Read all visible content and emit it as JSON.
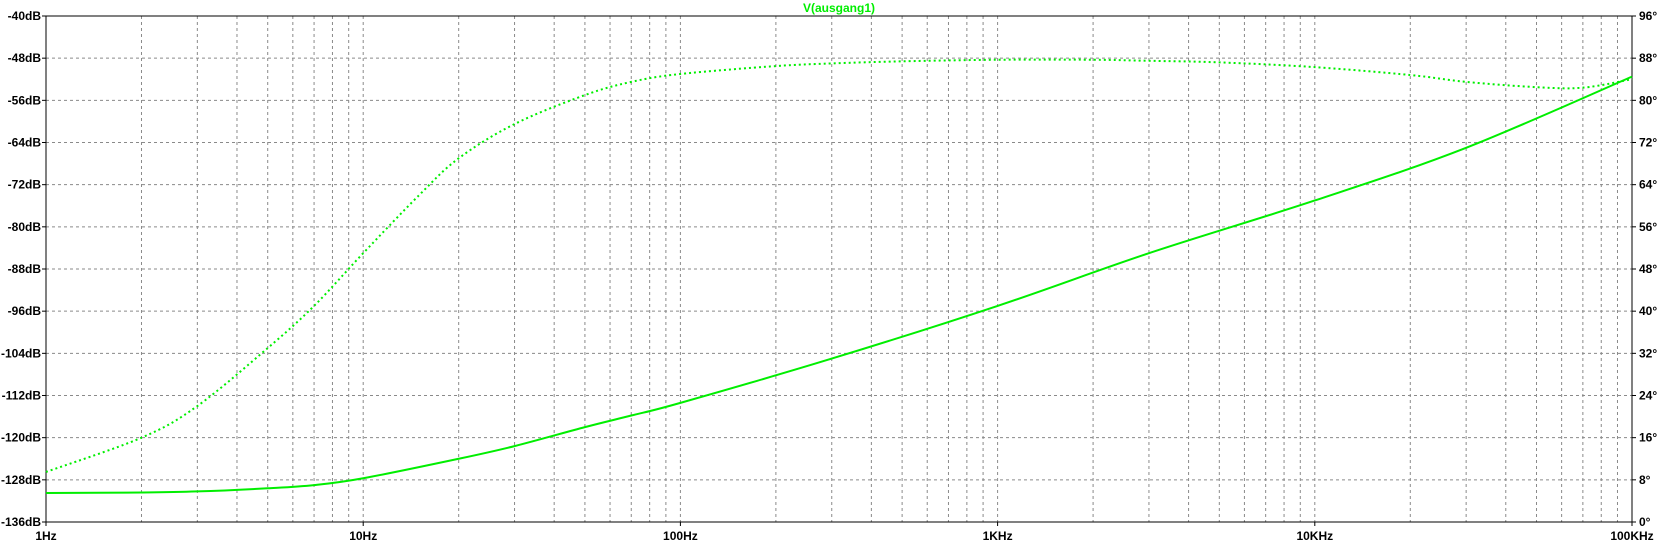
{
  "chart_data": {
    "type": "line",
    "title": "V(ausgang1)",
    "xscale": "log",
    "xlim": [
      1,
      100000
    ],
    "x_ticks": [
      {
        "value": 1,
        "label": "1Hz"
      },
      {
        "value": 10,
        "label": "10Hz"
      },
      {
        "value": 100,
        "label": "100Hz"
      },
      {
        "value": 1000,
        "label": "1KHz"
      },
      {
        "value": 10000,
        "label": "10KHz"
      },
      {
        "value": 100000,
        "label": "100KHz"
      }
    ],
    "ylim_left": [
      -136,
      -40
    ],
    "y_left_ticks": [
      "-40dB",
      "-48dB",
      "-56dB",
      "-64dB",
      "-72dB",
      "-80dB",
      "-88dB",
      "-96dB",
      "-104dB",
      "-112dB",
      "-120dB",
      "-128dB",
      "-136dB"
    ],
    "y_left_values": [
      -40,
      -48,
      -56,
      -64,
      -72,
      -80,
      -88,
      -96,
      -104,
      -112,
      -120,
      -128,
      -136
    ],
    "ylim_right": [
      0,
      96
    ],
    "y_right_ticks": [
      "96°",
      "88°",
      "80°",
      "72°",
      "64°",
      "56°",
      "48°",
      "40°",
      "32°",
      "24°",
      "16°",
      "8°",
      "0°"
    ],
    "y_right_values": [
      96,
      88,
      80,
      72,
      64,
      56,
      48,
      40,
      32,
      24,
      16,
      8,
      0
    ],
    "grid": true,
    "color": "#00ee00",
    "series": [
      {
        "axis": "left",
        "style": "solid",
        "x": [
          1,
          2,
          3,
          5,
          7,
          10,
          20,
          30,
          50,
          70,
          100,
          300,
          1000,
          3000,
          10000,
          30000,
          100000
        ],
        "y": [
          -130.5,
          -130.4,
          -130.2,
          -129.6,
          -129.0,
          -127.7,
          -124.0,
          -121.6,
          -118.0,
          -115.8,
          -113.4,
          -105.0,
          -95.0,
          -85.0,
          -75.0,
          -65.0,
          -51.5
        ]
      },
      {
        "axis": "right",
        "style": "dotted",
        "x": [
          1,
          2,
          3,
          5,
          7,
          10,
          15,
          20,
          30,
          50,
          70,
          100,
          200,
          300,
          500,
          1000,
          2000,
          3000,
          5000,
          10000,
          20000,
          30000,
          50000,
          70000,
          100000
        ],
        "y": [
          9.5,
          16,
          22,
          33,
          41,
          51,
          62,
          69,
          75.5,
          81,
          83.5,
          85,
          86.5,
          87,
          87.4,
          87.7,
          87.7,
          87.5,
          87.2,
          86.3,
          84.8,
          83.5,
          82.5,
          82.4,
          84.0
        ]
      }
    ]
  }
}
